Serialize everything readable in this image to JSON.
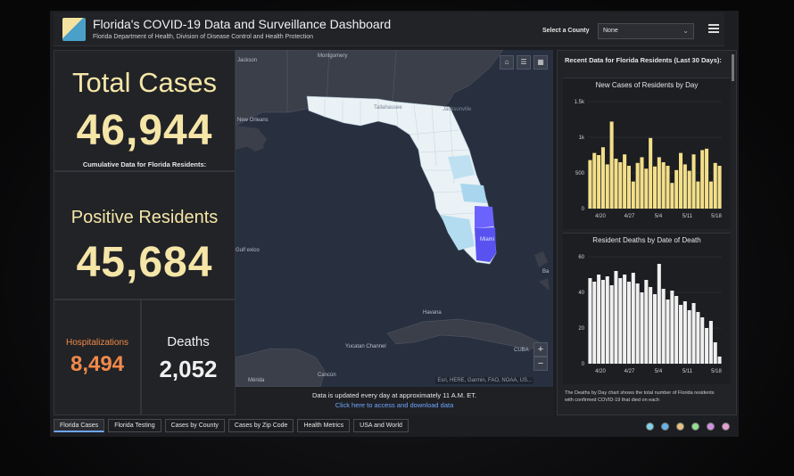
{
  "header": {
    "title": "Florida's COVID-19 Data and Surveillance Dashboard",
    "subtitle": "Florida Department of Health, Division of Disease Control and Health Protection",
    "county_label": "Select a County",
    "county_value": "None"
  },
  "stats": {
    "total_cases_label": "Total Cases",
    "total_cases_value": "46,944",
    "cumulative_caption": "Cumulative Data for Florida Residents:",
    "positive_label": "Positive Residents",
    "positive_value": "45,684",
    "hosp_label": "Hospitalizations",
    "hosp_value": "8,494",
    "deaths_label": "Deaths",
    "deaths_value": "2,052"
  },
  "map": {
    "labels": {
      "jackson": "Jackson",
      "montgomery": "Montgomery",
      "new_orleans": "New\nOrleans",
      "jacksonville": "Jacksonville",
      "tallahassee": "Tallahassee",
      "miami": "Miami",
      "havana": "Havana",
      "cuba": "CUBA",
      "yucatan": "Yucatan\nChannel",
      "cancun": "Cancún",
      "merida": "Mérida",
      "gulf": "Gulf\nexico",
      "ba": "Ba"
    },
    "attribution": "Esri, HERE, Garmin, FAO, NOAA, US...",
    "footer_line1": "Data is updated every day at approximately 11 A.M. ET.",
    "footer_link": "Click here to access and download data"
  },
  "right_panel": {
    "header": "Recent Data for Florida Residents (Last 30 Days):",
    "note": "The Deaths by Day chart shows the total number of Florida residents with confirmed COVID-19 that died on each"
  },
  "chart_data": [
    {
      "type": "bar",
      "title": "New Cases of Residents by Day",
      "color": "#f3df8a",
      "x_ticks": [
        "4/20",
        "4/27",
        "5/4",
        "5/11",
        "5/18"
      ],
      "ylim": [
        0,
        1500
      ],
      "y_ticks": [
        "1.5k",
        "1k",
        "500",
        "0"
      ],
      "values": [
        680,
        780,
        750,
        860,
        620,
        1220,
        700,
        650,
        760,
        600,
        380,
        640,
        720,
        560,
        990,
        590,
        720,
        650,
        600,
        360,
        540,
        780,
        620,
        530,
        760,
        380,
        820,
        840,
        380,
        640,
        600
      ]
    },
    {
      "type": "bar",
      "title": "Resident Deaths by Date of Death",
      "color": "#f0f0f0",
      "x_ticks": [
        "4/20",
        "4/27",
        "5/4",
        "5/11",
        "5/18"
      ],
      "ylim": [
        0,
        60
      ],
      "y_ticks": [
        "60",
        "40",
        "20",
        "0"
      ],
      "values": [
        48,
        46,
        50,
        47,
        49,
        44,
        52,
        48,
        50,
        46,
        51,
        45,
        40,
        47,
        43,
        39,
        56,
        42,
        36,
        41,
        38,
        33,
        35,
        30,
        34,
        29,
        26,
        20,
        24,
        12,
        4
      ]
    }
  ],
  "tabs": [
    "Florida Cases",
    "Florida Testing",
    "Cases by County",
    "Cases by Zip Code",
    "Health Metrics",
    "USA and World"
  ],
  "dot_colors": [
    "#7fd3e8",
    "#63b3e8",
    "#e8c07f",
    "#8fe08f",
    "#d08fe0",
    "#e89fd0"
  ]
}
